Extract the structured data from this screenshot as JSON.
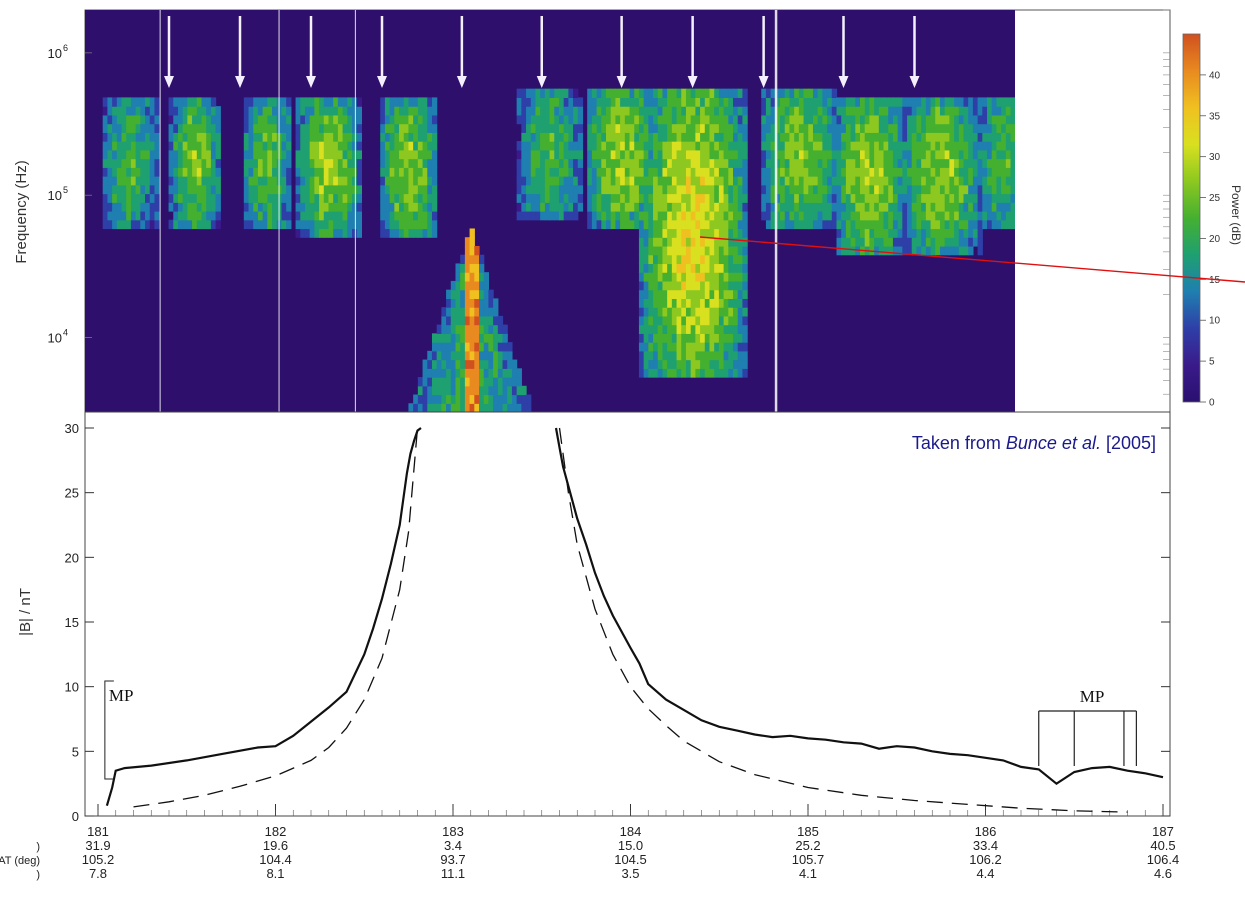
{
  "chart_data": [
    {
      "type": "heatmap",
      "ylabel": "Frequency (Hz)",
      "yscale": "log",
      "xlim": [
        181,
        187
      ],
      "ylim": [
        3000,
        2000000
      ],
      "y_ticks": [
        {
          "value": 10000,
          "mantissa": "10",
          "exp": "4"
        },
        {
          "value": 100000,
          "mantissa": "10",
          "exp": "5"
        },
        {
          "value": 1000000,
          "mantissa": "10",
          "exp": "6"
        }
      ],
      "data_end_x": 186.3,
      "colorbar": {
        "label": "Power (dB)",
        "range": [
          0,
          45
        ],
        "ticks": [
          "0",
          "5",
          "10",
          "15",
          "20",
          "25",
          "30",
          "35",
          "40"
        ],
        "colors": [
          "#2a1070",
          "#3a1a8a",
          "#2e3fa8",
          "#1f7fb0",
          "#1fa070",
          "#45b030",
          "#8cc820",
          "#d8e020",
          "#f0c020",
          "#e88a20",
          "#d05020"
        ]
      },
      "arrows_x": [
        181.4,
        181.8,
        182.2,
        182.6,
        183.05,
        183.5,
        183.95,
        184.35,
        184.75,
        185.2,
        185.6
      ],
      "vertical_lines_x": [
        181.35,
        182.02,
        182.45,
        184.82
      ],
      "colors": {
        "background": "#2e0f6b"
      }
    },
    {
      "type": "line",
      "ylabel": "|B| / nT",
      "xlim": [
        181,
        187
      ],
      "ylim": [
        -0.5,
        30
      ],
      "y_ticks": [
        "0",
        "5",
        "10",
        "15",
        "20",
        "25",
        "30"
      ],
      "x_ticks": [
        "181",
        "182",
        "183",
        "184",
        "185",
        "186",
        "187"
      ],
      "ephemeris": {
        "row_labels": [
          ")",
          "AT (deg)",
          ")"
        ],
        "rows": [
          [
            "31.9",
            "19.6",
            "3.4",
            "15.0",
            "25.2",
            "33.4",
            "40.5"
          ],
          [
            "105.2",
            "104.4",
            "93.7",
            "104.5",
            "105.7",
            "106.2",
            "106.4"
          ],
          [
            "7.8",
            "8.1",
            "11.1",
            "3.5",
            "4.1",
            "4.4",
            "4.6"
          ]
        ]
      },
      "series": [
        {
          "style": "solid",
          "x": [
            181.05,
            181.08,
            181.1,
            181.15,
            181.3,
            181.5,
            181.7,
            181.9,
            182.0,
            182.1,
            182.2,
            182.3,
            182.4,
            182.5,
            182.55,
            182.6,
            182.65,
            182.7,
            182.72,
            182.74,
            182.76,
            182.78,
            182.8,
            182.82
          ],
          "y": [
            0.8,
            2.2,
            3.5,
            3.7,
            3.9,
            4.3,
            4.8,
            5.3,
            5.4,
            6.2,
            7.3,
            8.4,
            9.6,
            12.5,
            14.5,
            16.8,
            19.5,
            22.5,
            24.5,
            26.5,
            28.0,
            29.0,
            29.8,
            30.0
          ]
        },
        {
          "style": "solid",
          "x": [
            183.58,
            183.6,
            183.62,
            183.65,
            183.7,
            183.75,
            183.8,
            183.85,
            183.9,
            184.0,
            184.05,
            184.1,
            184.2,
            184.3,
            184.4,
            184.5,
            184.6,
            184.7,
            184.8,
            184.9,
            185.0,
            185.1,
            185.2,
            185.3,
            185.4,
            185.5,
            185.6,
            185.7,
            185.8,
            185.9,
            186.0,
            186.1,
            186.2,
            186.3,
            186.4,
            186.5,
            186.6,
            186.7,
            186.8,
            186.9,
            187.0
          ],
          "y": [
            30.0,
            28.5,
            27.0,
            25.5,
            23.0,
            21.0,
            18.8,
            17.0,
            15.5,
            13.0,
            11.8,
            10.2,
            9.0,
            8.2,
            7.4,
            6.9,
            6.6,
            6.3,
            6.1,
            6.2,
            6.0,
            5.9,
            5.7,
            5.6,
            5.2,
            5.4,
            5.3,
            5.0,
            4.8,
            4.7,
            4.5,
            4.3,
            3.8,
            3.6,
            2.5,
            3.4,
            3.7,
            3.8,
            3.5,
            3.3,
            3.0
          ]
        },
        {
          "style": "dashed",
          "x": [
            181.2,
            181.4,
            181.6,
            181.8,
            182.0,
            182.2,
            182.3,
            182.4,
            182.5,
            182.6,
            182.7,
            182.75,
            182.8
          ],
          "y": [
            0.7,
            1.1,
            1.6,
            2.3,
            3.1,
            4.3,
            5.3,
            6.8,
            9.0,
            12.2,
            17.5,
            22.0,
            30.0
          ]
        },
        {
          "style": "dashed",
          "x": [
            183.6,
            183.65,
            183.7,
            183.75,
            183.8,
            183.9,
            184.0,
            184.1,
            184.2,
            184.3,
            184.5,
            184.7,
            185.0,
            185.3,
            185.6,
            185.9,
            186.2,
            186.5,
            186.8
          ],
          "y": [
            30.0,
            25.0,
            21.0,
            18.5,
            16.0,
            12.5,
            10.0,
            8.3,
            7.0,
            5.8,
            4.2,
            3.2,
            2.2,
            1.6,
            1.2,
            0.9,
            0.6,
            0.4,
            0.3
          ]
        }
      ],
      "annotations": [
        {
          "text": "MP",
          "x": 181.05
        },
        {
          "text": "MP",
          "x": 186.6
        }
      ],
      "magnetopause_crossings_x": [
        186.3,
        186.5,
        186.78,
        186.85
      ],
      "credit": {
        "prefix": "Taken from ",
        "italic": "Bunce et al.",
        "suffix": " [2005]"
      }
    }
  ]
}
